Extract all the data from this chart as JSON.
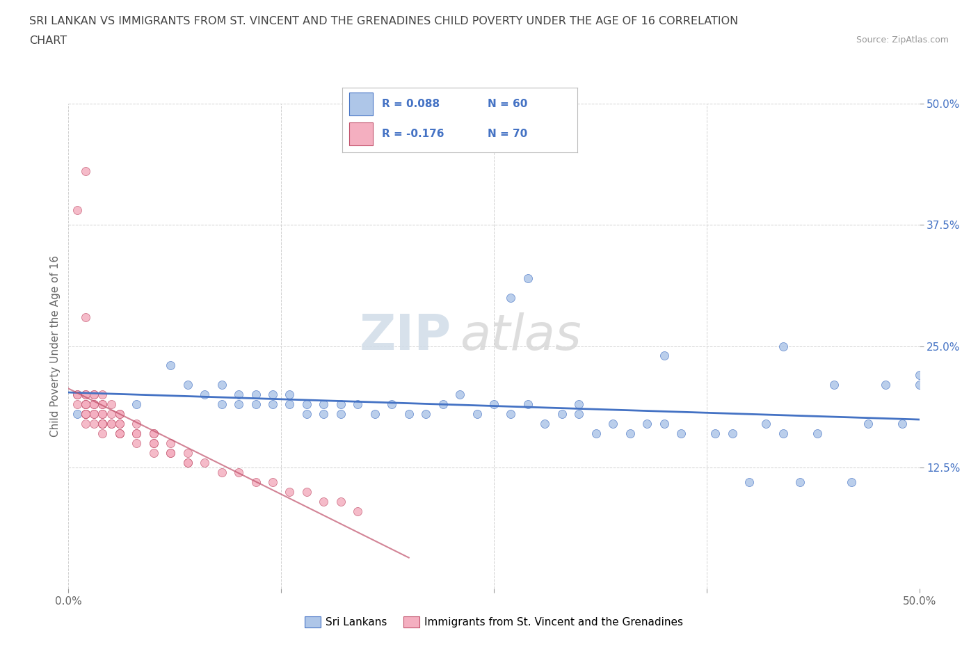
{
  "title_line1": "SRI LANKAN VS IMMIGRANTS FROM ST. VINCENT AND THE GRENADINES CHILD POVERTY UNDER THE AGE OF 16 CORRELATION",
  "title_line2": "CHART",
  "source_text": "Source: ZipAtlas.com",
  "ylabel": "Child Poverty Under the Age of 16",
  "xmin": 0.0,
  "xmax": 0.5,
  "ymin": 0.0,
  "ymax": 0.5,
  "xticks": [
    0.0,
    0.125,
    0.25,
    0.375,
    0.5
  ],
  "xticklabels": [
    "0.0%",
    "",
    "",
    "",
    "50.0%"
  ],
  "yticks": [
    0.125,
    0.25,
    0.375,
    0.5
  ],
  "yticklabels": [
    "12.5%",
    "25.0%",
    "37.5%",
    "50.0%"
  ],
  "sri_lanka_color": "#aec6e8",
  "stvincent_color": "#f4afc0",
  "sri_lanka_line_color": "#4472c4",
  "stvincent_line_color": "#c0506a",
  "r_sri": 0.088,
  "r_vin": -0.176,
  "n_sri": 60,
  "n_vin": 70,
  "watermark_zip": "ZIP",
  "watermark_atlas": "atlas",
  "bg_color": "#ffffff",
  "grid_color": "#d0d0d0",
  "sri_x": [
    0.005,
    0.04,
    0.06,
    0.07,
    0.08,
    0.09,
    0.09,
    0.1,
    0.1,
    0.11,
    0.11,
    0.12,
    0.12,
    0.13,
    0.13,
    0.14,
    0.14,
    0.15,
    0.15,
    0.16,
    0.16,
    0.17,
    0.18,
    0.19,
    0.2,
    0.21,
    0.22,
    0.23,
    0.24,
    0.25,
    0.26,
    0.27,
    0.28,
    0.29,
    0.3,
    0.3,
    0.31,
    0.32,
    0.33,
    0.34,
    0.35,
    0.36,
    0.38,
    0.39,
    0.4,
    0.41,
    0.42,
    0.43,
    0.44,
    0.45,
    0.46,
    0.47,
    0.48,
    0.49,
    0.5,
    0.26,
    0.27,
    0.35,
    0.42,
    0.5
  ],
  "sri_y": [
    0.18,
    0.19,
    0.23,
    0.21,
    0.2,
    0.19,
    0.21,
    0.2,
    0.19,
    0.2,
    0.19,
    0.19,
    0.2,
    0.19,
    0.2,
    0.19,
    0.18,
    0.18,
    0.19,
    0.18,
    0.19,
    0.19,
    0.18,
    0.19,
    0.18,
    0.18,
    0.19,
    0.2,
    0.18,
    0.19,
    0.18,
    0.19,
    0.17,
    0.18,
    0.19,
    0.18,
    0.16,
    0.17,
    0.16,
    0.17,
    0.17,
    0.16,
    0.16,
    0.16,
    0.11,
    0.17,
    0.16,
    0.11,
    0.16,
    0.21,
    0.11,
    0.17,
    0.21,
    0.17,
    0.21,
    0.3,
    0.32,
    0.24,
    0.25,
    0.22
  ],
  "vin_x": [
    0.005,
    0.005,
    0.005,
    0.01,
    0.01,
    0.01,
    0.01,
    0.01,
    0.01,
    0.01,
    0.01,
    0.01,
    0.01,
    0.015,
    0.015,
    0.015,
    0.015,
    0.015,
    0.015,
    0.015,
    0.02,
    0.02,
    0.02,
    0.02,
    0.02,
    0.02,
    0.02,
    0.02,
    0.02,
    0.02,
    0.02,
    0.025,
    0.025,
    0.025,
    0.025,
    0.03,
    0.03,
    0.03,
    0.03,
    0.03,
    0.03,
    0.03,
    0.04,
    0.04,
    0.04,
    0.04,
    0.05,
    0.05,
    0.05,
    0.05,
    0.05,
    0.06,
    0.06,
    0.06,
    0.07,
    0.07,
    0.07,
    0.08,
    0.09,
    0.1,
    0.11,
    0.12,
    0.13,
    0.14,
    0.15,
    0.16,
    0.17,
    0.005,
    0.01,
    0.01
  ],
  "vin_y": [
    0.2,
    0.2,
    0.19,
    0.2,
    0.19,
    0.2,
    0.19,
    0.19,
    0.18,
    0.18,
    0.18,
    0.18,
    0.17,
    0.2,
    0.2,
    0.19,
    0.19,
    0.18,
    0.18,
    0.17,
    0.2,
    0.19,
    0.19,
    0.18,
    0.18,
    0.17,
    0.17,
    0.17,
    0.17,
    0.17,
    0.16,
    0.19,
    0.18,
    0.17,
    0.17,
    0.18,
    0.18,
    0.17,
    0.17,
    0.16,
    0.16,
    0.16,
    0.17,
    0.16,
    0.16,
    0.15,
    0.16,
    0.16,
    0.15,
    0.15,
    0.14,
    0.15,
    0.14,
    0.14,
    0.14,
    0.13,
    0.13,
    0.13,
    0.12,
    0.12,
    0.11,
    0.11,
    0.1,
    0.1,
    0.09,
    0.09,
    0.08,
    0.39,
    0.28,
    0.43
  ]
}
